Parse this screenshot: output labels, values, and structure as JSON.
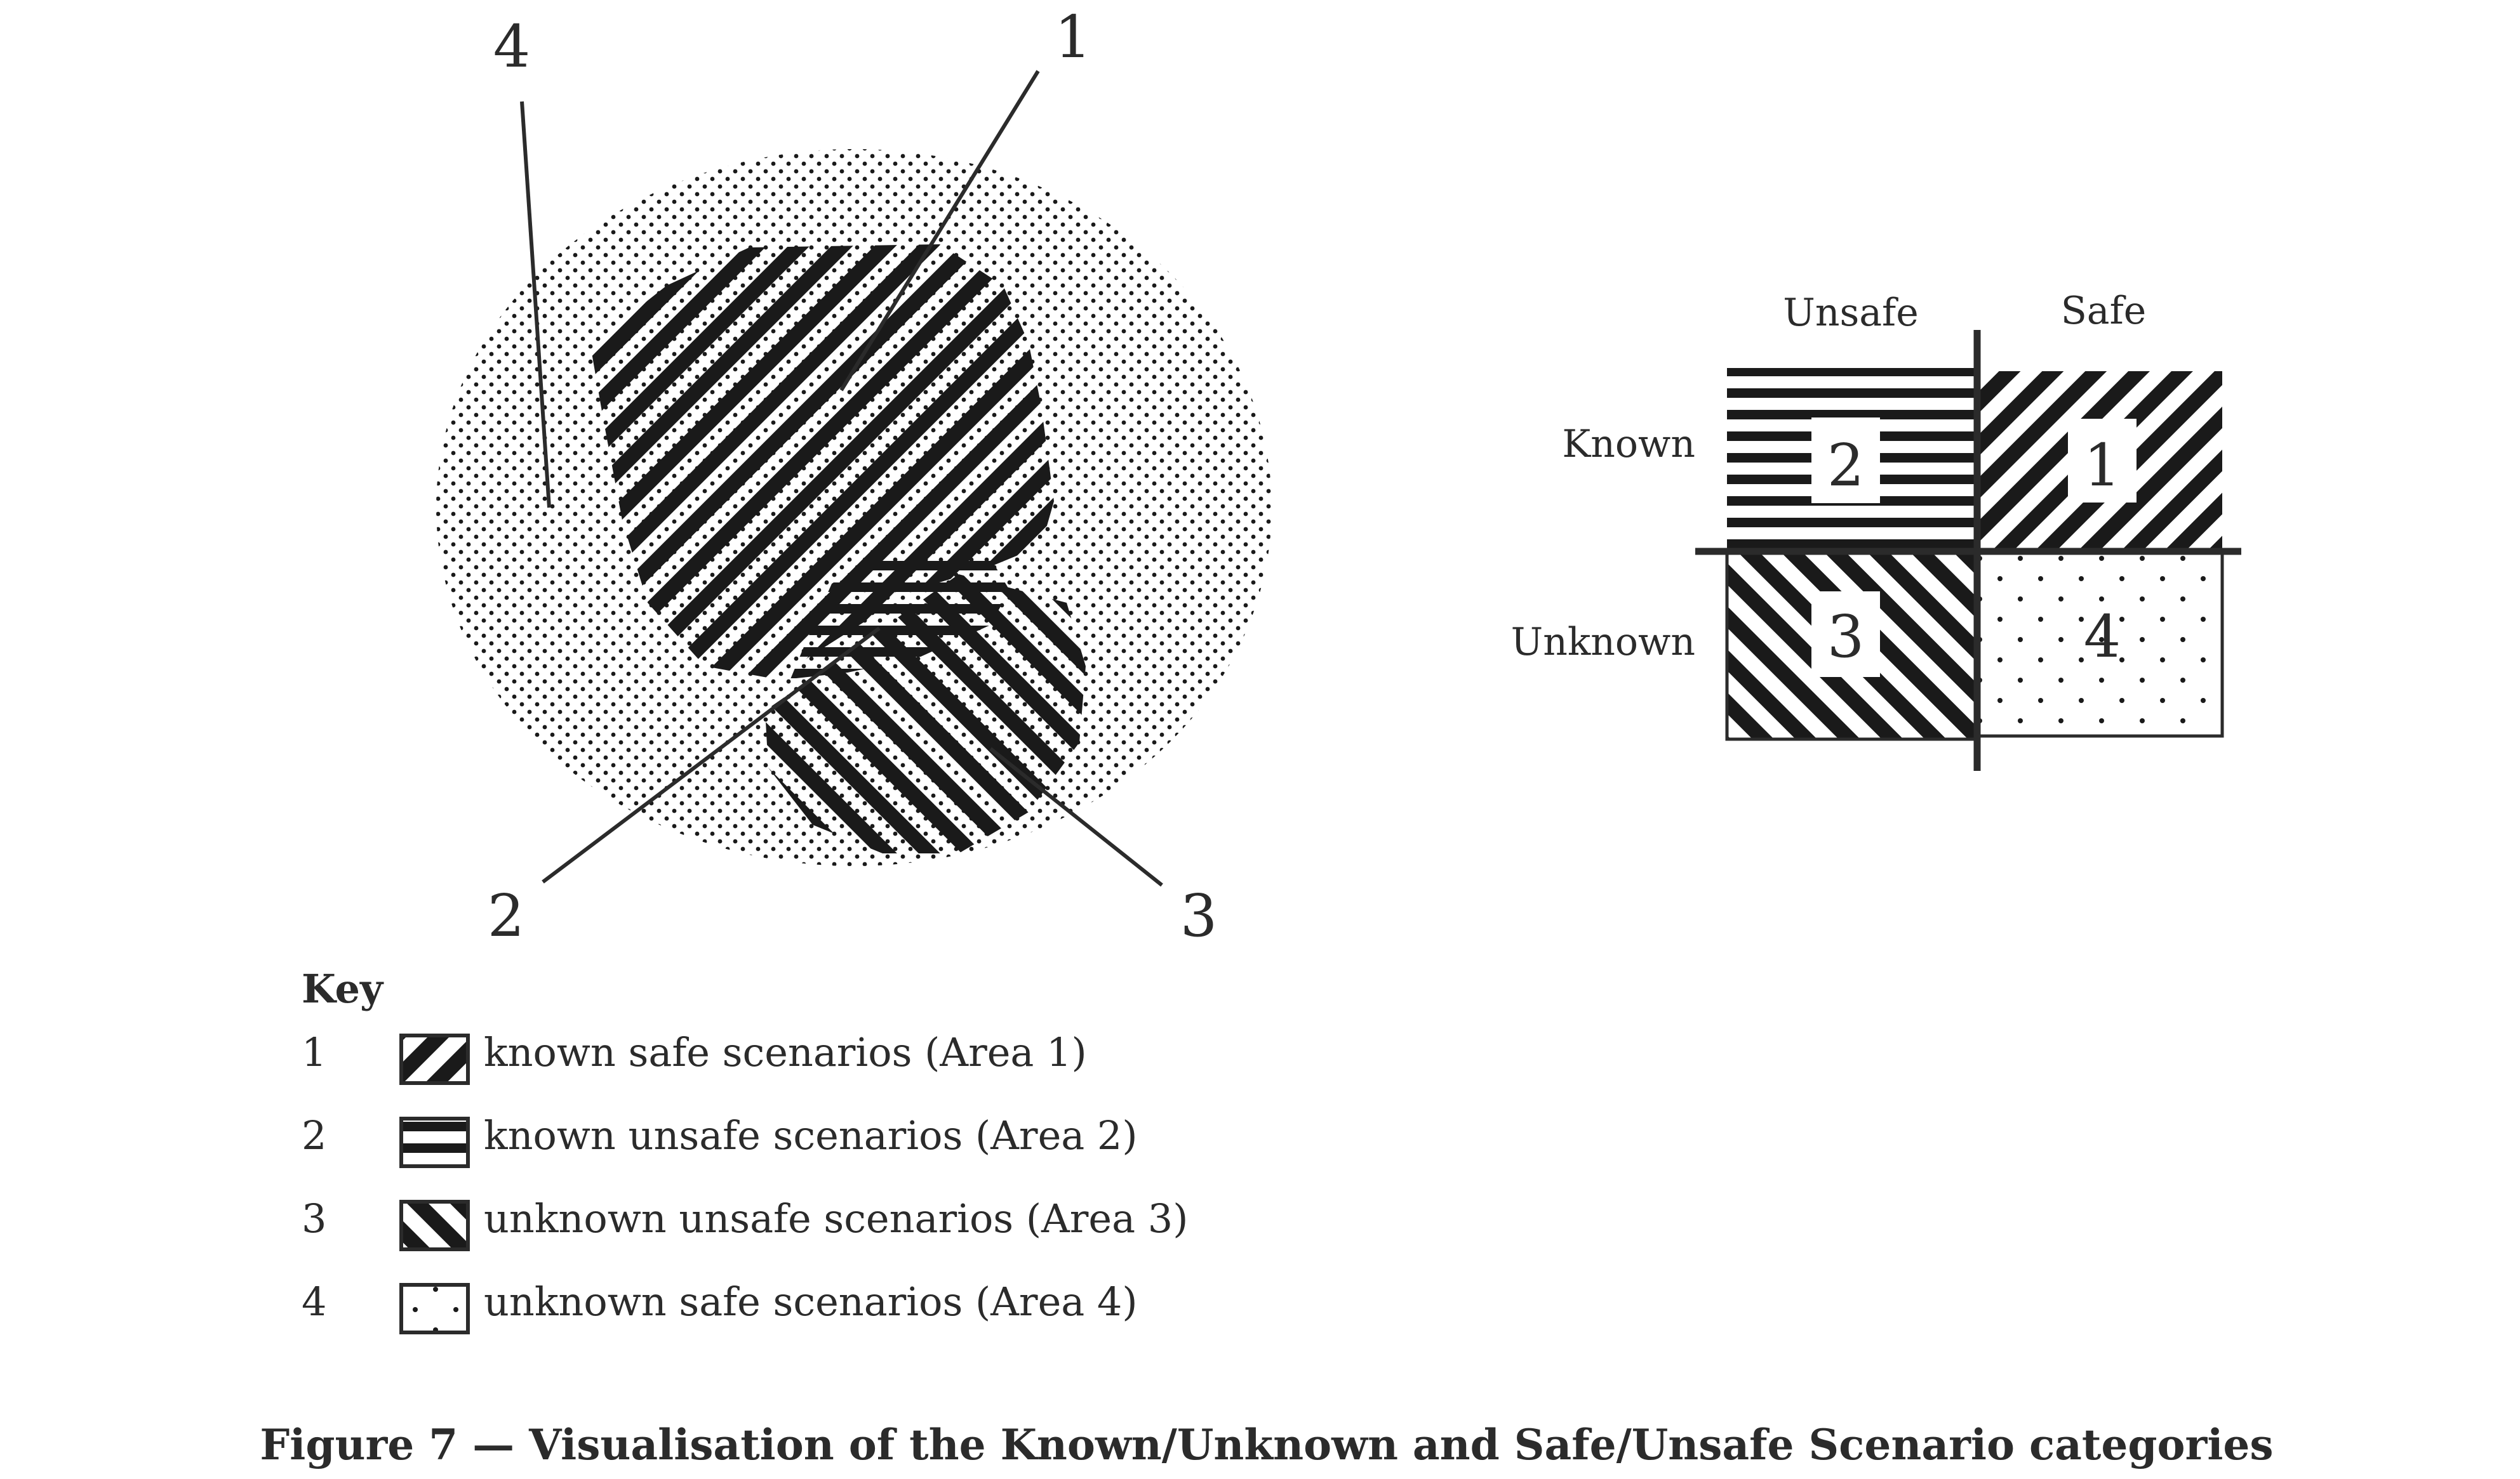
{
  "venn": {
    "callouts": [
      "1",
      "2",
      "3",
      "4"
    ]
  },
  "matrix": {
    "col_unsafe": "Unsafe",
    "col_safe": "Safe",
    "row_known": "Known",
    "row_unknown": "Unknown",
    "cells": [
      "1",
      "2",
      "3",
      "4"
    ]
  },
  "key": {
    "title": "Key",
    "items": [
      {
        "num": "1",
        "text": "known safe scenarios (Area 1)",
        "pattern": "diag-forward"
      },
      {
        "num": "2",
        "text": "known unsafe scenarios (Area 2)",
        "pattern": "horizontal-lines"
      },
      {
        "num": "3",
        "text": "unknown unsafe scenarios (Area 3)",
        "pattern": "diag-backward"
      },
      {
        "num": "4",
        "text": "unknown safe scenarios (Area 4)",
        "pattern": "dots"
      }
    ]
  },
  "caption": "Figure 7 — Visualisation of the Known/Unknown and Safe/Unsafe Scenario categories",
  "colors": {
    "ink": "#2b2b2b",
    "fill": "#1a1a1a",
    "background": "#ffffff"
  }
}
